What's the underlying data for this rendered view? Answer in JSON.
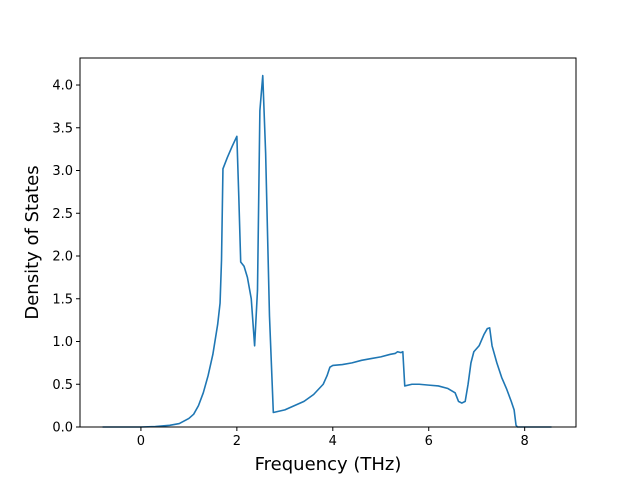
{
  "chart_data": {
    "type": "line",
    "x_label": "Frequency (THz)",
    "y_label": "Density of States",
    "xlim": [
      -1.27,
      9.07
    ],
    "ylim": [
      0,
      4.316
    ],
    "xticks": [
      0,
      2,
      4,
      6,
      8
    ],
    "yticks": [
      {
        "value": 0,
        "label": "0.0"
      },
      0.5,
      {
        "value": 1,
        "label": "1.0"
      },
      1.5,
      {
        "value": 2,
        "label": "2.0"
      },
      2.5,
      {
        "value": 3,
        "label": "3.0"
      },
      3.5,
      {
        "value": 4,
        "label": "4.0"
      }
    ],
    "series": [
      {
        "color": "#1f77b4",
        "x": [
          -0.8,
          0.0,
          0.3,
          0.6,
          0.8,
          1.0,
          1.1,
          1.2,
          1.3,
          1.4,
          1.5,
          1.6,
          1.65,
          1.68,
          1.71,
          1.8,
          1.9,
          2.0,
          2.04,
          2.08,
          2.15,
          2.22,
          2.3,
          2.37,
          2.43,
          2.48,
          2.54,
          2.6,
          2.68,
          2.76,
          3.0,
          3.2,
          3.4,
          3.6,
          3.8,
          3.88,
          3.94,
          4.0,
          4.2,
          4.4,
          4.6,
          4.8,
          5.0,
          5.2,
          5.3,
          5.35,
          5.42,
          5.46,
          5.5,
          5.65,
          5.8,
          6.0,
          6.2,
          6.4,
          6.55,
          6.62,
          6.69,
          6.76,
          6.82,
          6.88,
          6.94,
          7.05,
          7.15,
          7.22,
          7.27,
          7.32,
          7.42,
          7.52,
          7.62,
          7.72,
          7.78,
          7.82,
          7.85,
          8.56
        ],
        "values": [
          0,
          0,
          0.005,
          0.02,
          0.04,
          0.1,
          0.15,
          0.25,
          0.4,
          0.6,
          0.85,
          1.2,
          1.45,
          1.95,
          3.02,
          3.15,
          3.28,
          3.4,
          2.7,
          1.93,
          1.88,
          1.75,
          1.5,
          0.95,
          1.6,
          3.7,
          4.11,
          3.2,
          1.3,
          0.17,
          0.2,
          0.25,
          0.3,
          0.38,
          0.5,
          0.6,
          0.7,
          0.72,
          0.73,
          0.75,
          0.78,
          0.8,
          0.82,
          0.85,
          0.86,
          0.88,
          0.87,
          0.88,
          0.48,
          0.5,
          0.5,
          0.49,
          0.48,
          0.45,
          0.4,
          0.3,
          0.28,
          0.3,
          0.5,
          0.75,
          0.88,
          0.95,
          1.08,
          1.15,
          1.16,
          0.95,
          0.75,
          0.58,
          0.45,
          0.3,
          0.2,
          0.02,
          0,
          0
        ]
      }
    ]
  }
}
